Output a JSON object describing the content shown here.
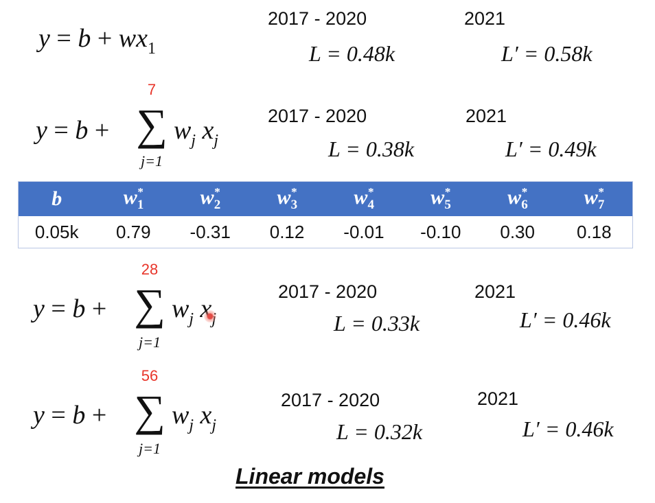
{
  "models": [
    {
      "name": "y = b + wx1",
      "train_period": "2017 - 2020",
      "train_loss": "L = 0.48k",
      "test_year": "2021",
      "test_loss": "L′ = 0.58k"
    },
    {
      "sum_upper": "7",
      "sum_lower": "j=1",
      "train_period": "2017 - 2020",
      "train_loss": "L = 0.38k",
      "test_year": "2021",
      "test_loss": "L′ = 0.49k"
    },
    {
      "sum_upper": "28",
      "sum_lower": "j=1",
      "train_period": "2017 - 2020",
      "train_loss": "L = 0.33k",
      "test_year": "2021",
      "test_loss": "L′ = 0.46k"
    },
    {
      "sum_upper": "56",
      "sum_lower": "j=1",
      "train_period": "2017 - 2020",
      "train_loss": "L = 0.32k",
      "test_year": "2021",
      "test_loss": "L′ = 0.46k"
    }
  ],
  "weights_table": {
    "headers": [
      "b",
      "w1*",
      "w2*",
      "w3*",
      "w4*",
      "w5*",
      "w6*",
      "w7*"
    ],
    "values": [
      "0.05k",
      "0.79",
      "-0.31",
      "0.12",
      "-0.01",
      "-0.10",
      "0.30",
      "0.18"
    ],
    "header_color": "#4472c4"
  },
  "caption": "Linear models",
  "colors": {
    "sum_upper": "#e8352a",
    "cursor": "#e34b45"
  },
  "icons": [
    "cursor-indicator-icon"
  ]
}
